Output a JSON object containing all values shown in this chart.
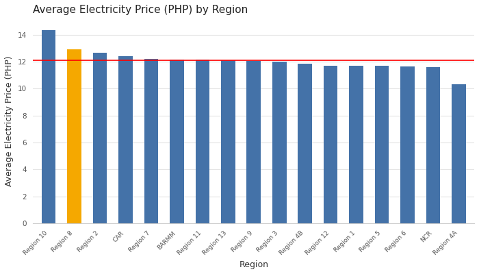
{
  "title": "Average Electricity Price (PHP) by Region",
  "xlabel": "Region",
  "ylabel": "Average Electricity Price (PHP)",
  "categories": [
    "Region 10",
    "Region 8",
    "Region 2",
    "CAR",
    "Region 7",
    "BARMM",
    "Region 11",
    "Region 13",
    "Region 9",
    "Region 3",
    "Region 4B",
    "Region 12",
    "Region 1",
    "Region 5",
    "Region 6",
    "NCR",
    "Region 4A"
  ],
  "values": [
    14.35,
    12.9,
    12.65,
    12.42,
    12.22,
    12.18,
    12.15,
    12.12,
    12.08,
    12.0,
    11.88,
    11.7,
    11.68,
    11.68,
    11.65,
    11.62,
    10.35
  ],
  "bar_colors": [
    "#4472a8",
    "#f5a800",
    "#4472a8",
    "#4472a8",
    "#4472a8",
    "#4472a8",
    "#4472a8",
    "#4472a8",
    "#4472a8",
    "#4472a8",
    "#4472a8",
    "#4472a8",
    "#4472a8",
    "#4472a8",
    "#4472a8",
    "#4472a8",
    "#4472a8"
  ],
  "reference_line": 12.12,
  "reference_line_color": "#ff0000",
  "ylim": [
    0,
    15.2
  ],
  "yticks": [
    0,
    2,
    4,
    6,
    8,
    10,
    12,
    14
  ],
  "background_color": "#ffffff",
  "grid_color": "#e5e5e5",
  "title_fontsize": 11,
  "title_fontweight": "normal",
  "label_fontsize": 9,
  "tick_fontsize": 7.5,
  "xtick_fontsize": 6.5
}
